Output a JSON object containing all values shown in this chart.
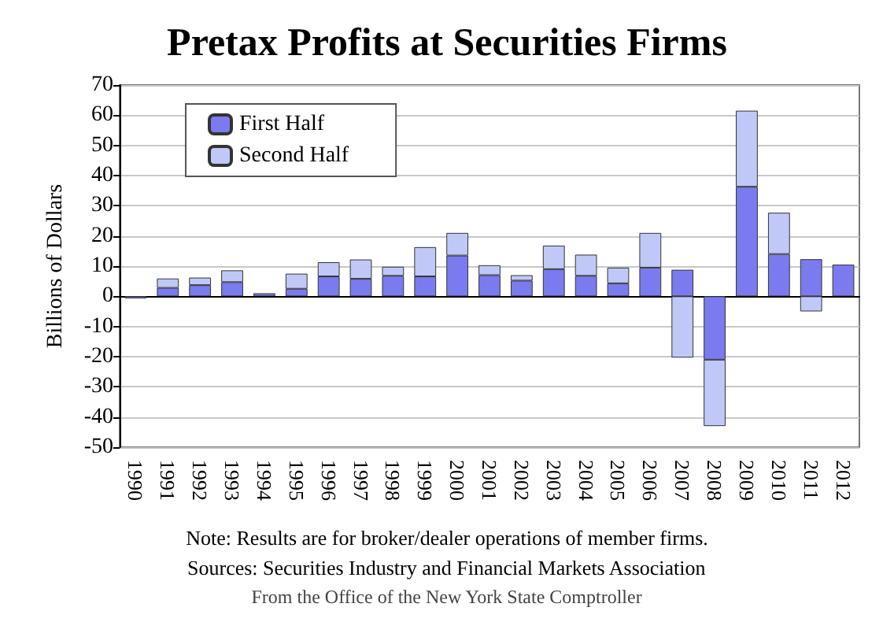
{
  "chart_data": {
    "type": "bar",
    "title": "Pretax Profits at Securities Firms",
    "ylabel": "Billions of Dollars",
    "categories": [
      "1990",
      "1991",
      "1992",
      "1993",
      "1994",
      "1995",
      "1996",
      "1997",
      "1998",
      "1999",
      "2000",
      "2001",
      "2002",
      "2003",
      "2004",
      "2005",
      "2006",
      "2007",
      "2008",
      "2009",
      "2010",
      "2011",
      "2012"
    ],
    "series": [
      {
        "name": "First Half",
        "color": "#7b7bef",
        "values": [
          -0.7,
          2.8,
          3.7,
          4.7,
          1.0,
          2.5,
          6.6,
          5.8,
          6.8,
          6.6,
          13.5,
          7.0,
          5.2,
          9.0,
          6.8,
          4.3,
          9.5,
          8.8,
          -21,
          36.3,
          14.0,
          12.3,
          10.5
        ]
      },
      {
        "name": "Second Half",
        "color": "#c0c8f8",
        "values": [
          null,
          3.1,
          2.5,
          3.9,
          null,
          5.0,
          4.7,
          6.4,
          3.0,
          9.7,
          7.5,
          3.3,
          1.8,
          7.8,
          7.0,
          5.2,
          11.5,
          -20.3,
          -22,
          25.2,
          13.7,
          -5.0,
          null
        ]
      }
    ],
    "stacked": true,
    "ylim": [
      -50,
      70
    ],
    "yticks": [
      -50,
      -40,
      -30,
      -20,
      -10,
      0,
      10,
      20,
      30,
      40,
      50,
      60,
      70
    ],
    "grid": "y",
    "legend": "top left",
    "annotations": [
      "Note: Results are for broker/dealer operations of member firms.",
      "Sources: Securities Industry and Financial Markets Association",
      "From the Office of the New York State Comptroller"
    ]
  }
}
